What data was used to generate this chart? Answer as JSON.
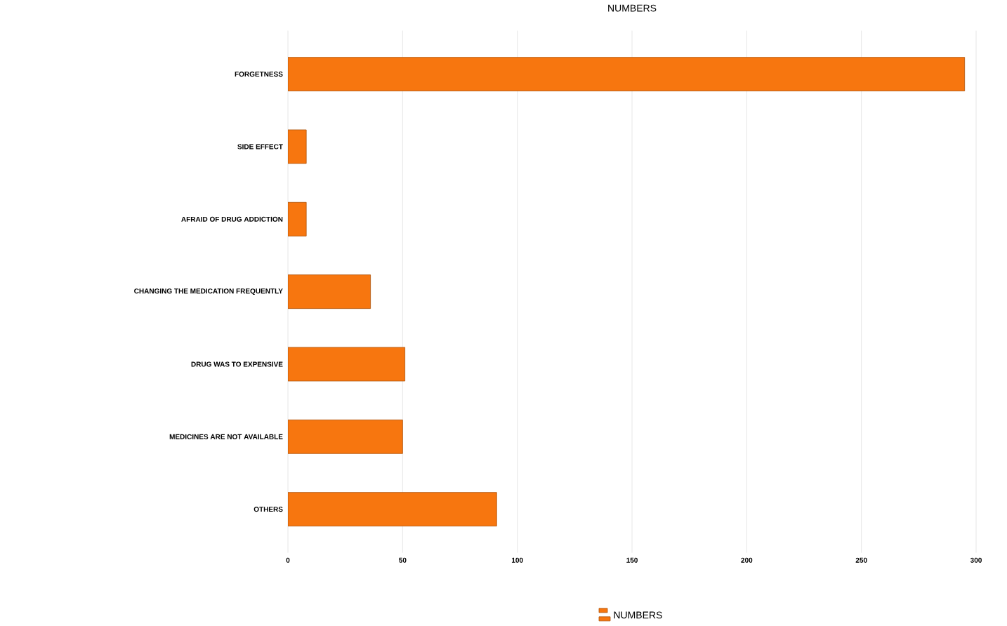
{
  "chart_data": {
    "type": "bar",
    "orientation": "horizontal",
    "title": "NUMBERS",
    "categories": [
      "FORGETNESS",
      "SIDE EFFECT",
      "AFRAID OF DRUG ADDICTION",
      "CHANGING THE MEDICATION FREQUENTLY",
      "DRUG WAS TO EXPENSIVE",
      "MEDICINES ARE NOT AVAILABLE",
      "OTHERS"
    ],
    "series": [
      {
        "name": "NUMBERS",
        "color": "#f7760f",
        "values": [
          295,
          8,
          8,
          36,
          51,
          50,
          91
        ]
      }
    ],
    "xlim": [
      0,
      300
    ],
    "xticks": [
      0,
      50,
      100,
      150,
      200,
      250,
      300
    ],
    "grid": "x",
    "legend": "bottom"
  }
}
